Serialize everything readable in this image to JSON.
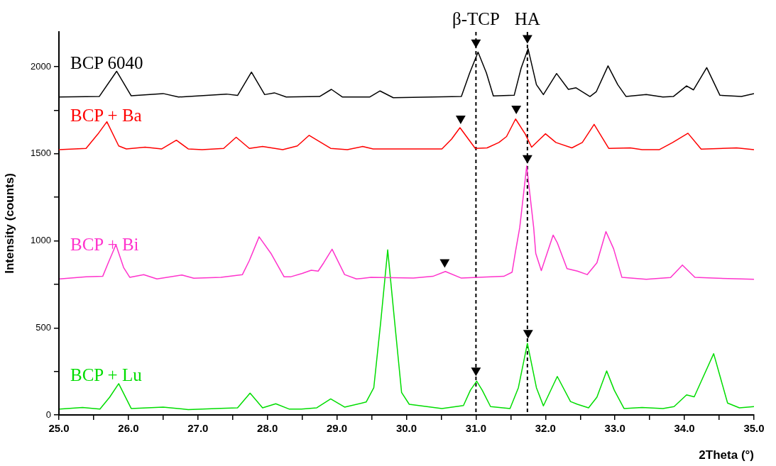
{
  "chart_data": {
    "type": "line",
    "xlabel": "2Theta (°)",
    "ylabel": "Intensity (counts)",
    "xlim": [
      25,
      35
    ],
    "ylim": [
      0,
      2200
    ],
    "xticks": [
      {
        "value": 25,
        "label": "25.0"
      },
      {
        "value": 25.5,
        "label": null
      },
      {
        "value": 26,
        "label": "26.0"
      },
      {
        "value": 26.5,
        "label": null
      },
      {
        "value": 27,
        "label": "27.0"
      },
      {
        "value": 27.5,
        "label": null
      },
      {
        "value": 28,
        "label": "28.0"
      },
      {
        "value": 28.5,
        "label": null
      },
      {
        "value": 29,
        "label": "29.0"
      },
      {
        "value": 29.5,
        "label": null
      },
      {
        "value": 30,
        "label": "30.0"
      },
      {
        "value": 30.5,
        "label": null
      },
      {
        "value": 31,
        "label": "31.0"
      },
      {
        "value": 31.5,
        "label": null
      },
      {
        "value": 32,
        "label": "32.0"
      },
      {
        "value": 32.5,
        "label": null
      },
      {
        "value": 33,
        "label": "33.0"
      },
      {
        "value": 33.5,
        "label": null
      },
      {
        "value": 34,
        "label": "34.0"
      },
      {
        "value": 34.5,
        "label": null
      },
      {
        "value": 35,
        "label": "35.0"
      }
    ],
    "yticks": [
      0,
      {
        "value": 250,
        "label": null
      },
      500,
      {
        "value": 750,
        "label": null
      },
      1000,
      {
        "value": 1250,
        "label": null
      },
      1500,
      {
        "value": 1750,
        "label": null
      },
      2000
    ],
    "grid": false,
    "marker": "none",
    "line_style": "solid",
    "ref_lines": [
      {
        "axis": "x",
        "value": 31.0,
        "label": "β-TCP",
        "line_style": "dashed",
        "color": "#000000"
      },
      {
        "axis": "x",
        "value": 31.74,
        "label": "HA",
        "line_style": "dashed",
        "color": "#000000"
      }
    ],
    "series": [
      {
        "name": "BCP 6040",
        "color": "#000000",
        "x": [
          25.0,
          25.58,
          25.83,
          26.04,
          26.5,
          26.72,
          27.41,
          27.57,
          27.77,
          27.96,
          28.1,
          28.27,
          28.75,
          28.92,
          29.08,
          29.47,
          29.62,
          29.81,
          30.79,
          30.91,
          31.03,
          31.15,
          31.25,
          31.55,
          31.65,
          31.75,
          31.87,
          31.97,
          32.16,
          32.33,
          32.44,
          32.64,
          32.73,
          32.9,
          33.04,
          33.16,
          33.45,
          33.69,
          33.84,
          34.03,
          34.13,
          34.32,
          34.51,
          34.82,
          35.0
        ],
        "values": [
          1826,
          1829,
          1974,
          1833,
          1846,
          1826,
          1843,
          1835,
          1969,
          1840,
          1850,
          1826,
          1829,
          1870,
          1826,
          1826,
          1861,
          1822,
          1829,
          1965,
          2084,
          1965,
          1832,
          1836,
          1992,
          2103,
          1897,
          1840,
          1961,
          1870,
          1879,
          1829,
          1856,
          2005,
          1897,
          1829,
          1840,
          1826,
          1829,
          1890,
          1867,
          1995,
          1836,
          1829,
          1846
        ]
      },
      {
        "name": "BCP + Ba",
        "color": "#ff0000",
        "x": [
          25.0,
          25.39,
          25.56,
          25.69,
          25.86,
          25.97,
          26.24,
          26.48,
          26.69,
          26.86,
          27.06,
          27.37,
          27.55,
          27.74,
          27.93,
          28.22,
          28.43,
          28.6,
          28.91,
          29.15,
          29.37,
          29.52,
          30.31,
          30.51,
          30.65,
          30.77,
          30.99,
          31.16,
          31.33,
          31.44,
          31.57,
          31.71,
          31.8,
          32.0,
          32.15,
          32.38,
          32.53,
          32.7,
          32.91,
          33.22,
          33.39,
          33.64,
          33.83,
          34.05,
          34.24,
          34.75,
          35.0
        ],
        "values": [
          1524,
          1531,
          1613,
          1684,
          1545,
          1528,
          1538,
          1528,
          1578,
          1528,
          1524,
          1531,
          1595,
          1531,
          1542,
          1524,
          1545,
          1606,
          1531,
          1524,
          1542,
          1528,
          1528,
          1528,
          1585,
          1650,
          1531,
          1534,
          1565,
          1599,
          1700,
          1613,
          1538,
          1615,
          1565,
          1534,
          1565,
          1669,
          1531,
          1534,
          1524,
          1524,
          1565,
          1618,
          1527,
          1534,
          1524
        ]
      },
      {
        "name": "BCP + Bi",
        "color": "#ff33cc",
        "x": [
          25.01,
          25.39,
          25.63,
          25.71,
          25.82,
          25.93,
          26.02,
          26.22,
          26.41,
          26.77,
          26.94,
          27.33,
          27.64,
          27.74,
          27.88,
          28.05,
          28.24,
          28.33,
          28.5,
          28.63,
          28.73,
          28.81,
          28.93,
          29.11,
          29.28,
          29.49,
          30.1,
          30.38,
          30.56,
          30.79,
          31.4,
          31.52,
          31.57,
          31.63,
          31.73,
          31.83,
          31.86,
          31.94,
          32.11,
          32.17,
          32.31,
          32.46,
          32.6,
          32.74,
          32.87,
          32.98,
          33.1,
          33.45,
          33.8,
          33.97,
          34.15,
          34.41,
          34.82,
          35.0
        ],
        "values": [
          781,
          793,
          796,
          874,
          978,
          847,
          790,
          806,
          781,
          804,
          785,
          790,
          806,
          887,
          1023,
          928,
          793,
          793,
          813,
          831,
          826,
          874,
          952,
          806,
          781,
          790,
          786,
          796,
          824,
          786,
          796,
          820,
          942,
          1077,
          1430,
          1077,
          928,
          829,
          1033,
          989,
          840,
          826,
          806,
          874,
          1053,
          955,
          790,
          779,
          789,
          861,
          790,
          786,
          781,
          779
        ]
      },
      {
        "name": "BCP + Lu",
        "color": "#00dd00",
        "x": [
          25.01,
          25.34,
          25.59,
          25.73,
          25.86,
          26.04,
          26.5,
          26.86,
          27.33,
          27.57,
          27.75,
          27.93,
          28.12,
          28.31,
          28.49,
          28.71,
          28.91,
          29.11,
          29.42,
          29.53,
          29.63,
          29.73,
          29.83,
          29.93,
          30.04,
          30.51,
          30.82,
          30.92,
          31.01,
          31.09,
          31.21,
          31.49,
          31.61,
          31.74,
          31.87,
          31.97,
          32.17,
          32.36,
          32.46,
          32.62,
          32.74,
          32.88,
          32.99,
          33.13,
          33.39,
          33.69,
          33.85,
          34.03,
          34.14,
          34.42,
          34.62,
          34.79,
          35.0
        ],
        "values": [
          34,
          43,
          34,
          102,
          180,
          37,
          45,
          31,
          38,
          41,
          125,
          41,
          64,
          34,
          34,
          41,
          92,
          45,
          74,
          156,
          535,
          948,
          535,
          129,
          61,
          37,
          54,
          142,
          194,
          142,
          48,
          37,
          156,
          411,
          156,
          52,
          221,
          77,
          61,
          41,
          102,
          253,
          142,
          37,
          43,
          37,
          48,
          115,
          104,
          352,
          68,
          41,
          48
        ]
      },
      {
        "type": "scatter",
        "color": "#000000",
        "marker": "triangle",
        "x": [
          31.0,
          31.74,
          30.78,
          31.58,
          31.74,
          30.55,
          31.0,
          31.75
        ],
        "values": [
          2140,
          2165,
          1703,
          1760,
          1476,
          878,
          256,
          472
        ]
      }
    ]
  }
}
